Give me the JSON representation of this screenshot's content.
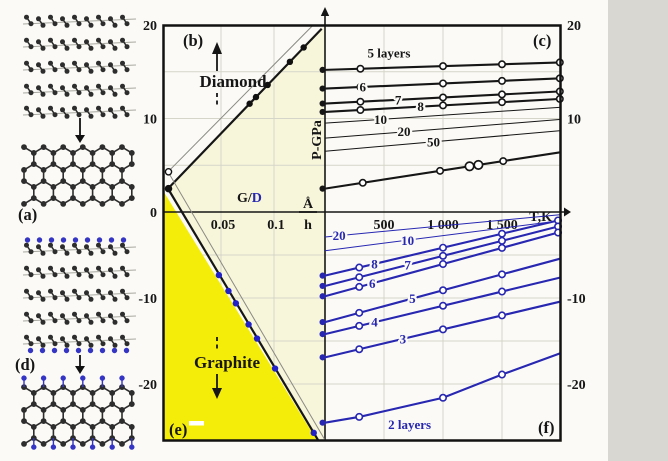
{
  "page": {
    "paper": "#fbfaf6",
    "strip": "#d9d7d2"
  },
  "colors": {
    "black": "#161616",
    "blue": "#2727b2",
    "marker_blue": "#2121c6",
    "yellow": "#f4ec09",
    "cream": "#f8f6da",
    "grid": "#d6d5c9",
    "thin_gray": "#8a8a84"
  },
  "panels": {
    "a": "(a)",
    "b": "(b)",
    "c": "(c)",
    "d": "(d)",
    "e": "(e)",
    "f": "(f)"
  },
  "annotations": {
    "diamond": "Diamond",
    "graphite": "Graphite"
  },
  "axis": {
    "p_label": "P-GPa",
    "t_label": "T,K",
    "fraction_top": "Å",
    "fraction_bottom": "h",
    "ratio_black": "G/",
    "ratio_blue": "D",
    "left_ticks": [
      {
        "p": 20,
        "t": "20"
      },
      {
        "p": 10,
        "t": "10"
      },
      {
        "p": 0,
        "t": "0"
      },
      {
        "p": -10,
        "t": "-10"
      },
      {
        "p": -20,
        "t": "-20"
      }
    ],
    "right_ticks": [
      {
        "p": 20,
        "t": "20"
      },
      {
        "p": 10,
        "t": "10"
      },
      {
        "p": -10,
        "t": "-10"
      },
      {
        "p": -20,
        "t": "-20"
      }
    ],
    "t_ticks": [
      {
        "v": 500,
        "t": "500"
      },
      {
        "v": 1000,
        "t": "1 000"
      },
      {
        "v": 1500,
        "t": "1 500"
      }
    ],
    "gd_ticks": [
      {
        "v": 0.05,
        "t": "0.05"
      },
      {
        "v": 0.1,
        "t": "0.1"
      }
    ]
  },
  "chart_data": [
    {
      "type": "line",
      "panel": "b-e",
      "xlabel": "G/D (Å/h)",
      "ylabel": "P-GPa",
      "xlim": [
        0,
        0.152
      ],
      "ylim": [
        -26.5,
        20
      ],
      "regions": [
        {
          "name": "diamond-region",
          "fill": "paper"
        },
        {
          "name": "intermediate-region",
          "fill": "cream"
        },
        {
          "name": "graphite-region",
          "fill": "yellow"
        }
      ],
      "series": [
        {
          "name": "diamond-boundary",
          "style": "thick",
          "color": "black",
          "points": [
            [
              0,
              2.5
            ],
            [
              0.145,
              19.6
            ]
          ],
          "marker": "filled_black",
          "marker_x": [
            0.077,
            0.083,
            0.094,
            0.115,
            0.128
          ]
        },
        {
          "name": "diamond-boundary-ref",
          "style": "thin",
          "color": "gray",
          "points": [
            [
              0,
              4.3
            ],
            [
              0.137,
              20.0
            ]
          ]
        },
        {
          "name": "graphite-boundary",
          "style": "thick",
          "color": "black",
          "points": [
            [
              0,
              2.5
            ],
            [
              0.1415,
              -26.5
            ]
          ],
          "marker": "filled_blue",
          "marker_x": [
            0.048,
            0.057,
            0.064,
            0.076,
            0.084,
            0.101,
            0.1375
          ]
        },
        {
          "name": "graphite-boundary-ref",
          "style": "thin",
          "color": "gray",
          "points": [
            [
              0,
              4.3
            ],
            [
              0.148,
              -26.5
            ]
          ]
        }
      ],
      "axis_markers": [
        {
          "p": 4.3,
          "type": "open"
        },
        {
          "p": 2.5,
          "type": "filled"
        }
      ]
    },
    {
      "type": "line",
      "panel": "c-f",
      "xlabel": "T,K",
      "ylabel": "P-GPa",
      "xlim": [
        0,
        2000
      ],
      "ylim": [
        -26.5,
        20
      ],
      "series": [
        {
          "label": "5 layers",
          "label_at": [
            360,
            17.0
          ],
          "label_anchor": "start",
          "label_off": true,
          "style": "thick",
          "color": "black",
          "points": [
            [
              0,
              15.2
            ],
            [
              2000,
              16.0
            ]
          ],
          "circles_t": [
            300,
            1000,
            1500,
            1990
          ],
          "axis_dot": true
        },
        {
          "label": "6",
          "label_at": [
            320,
            13.35
          ],
          "style": "thick",
          "color": "black",
          "points": [
            [
              0,
              13.2
            ],
            [
              2000,
              14.3
            ]
          ],
          "circles_t": [
            300,
            1000,
            1500,
            1990
          ],
          "axis_dot": true
        },
        {
          "label": "7",
          "label_at": [
            620,
            12.0
          ],
          "style": "thick",
          "color": "black",
          "points": [
            [
              0,
              11.6
            ],
            [
              2000,
              12.9
            ]
          ],
          "circles_t": [
            300,
            1000,
            1500,
            1990
          ],
          "axis_dot": true
        },
        {
          "label": "8",
          "label_at": [
            810,
            11.3
          ],
          "style": "thick",
          "color": "black",
          "points": [
            [
              0,
              10.7
            ],
            [
              2000,
              12.1
            ]
          ],
          "circles_t": [
            300,
            1000,
            1500,
            1990
          ],
          "axis_dot": true
        },
        {
          "label": "10",
          "label_at": [
            470,
            9.9
          ],
          "style": "thin",
          "color": "black",
          "points": [
            [
              0,
              9.5
            ],
            [
              2000,
              11.2
            ]
          ]
        },
        {
          "label": "20",
          "label_at": [
            670,
            8.6
          ],
          "style": "thin",
          "color": "black",
          "points": [
            [
              0,
              7.9
            ],
            [
              2000,
              9.9
            ]
          ]
        },
        {
          "label": "50",
          "label_at": [
            920,
            7.5
          ],
          "style": "thin",
          "color": "black",
          "points": [
            [
              0,
              6.5
            ],
            [
              2000,
              8.7
            ]
          ]
        },
        {
          "label": "∞",
          "style": "thick",
          "color": "black",
          "points": [
            [
              0,
              2.5
            ],
            [
              2000,
              6.4
            ]
          ],
          "circles_t": [
            320,
            975,
            1510
          ],
          "infinity_t": 1225,
          "axis_dot": true
        },
        {
          "label": "20",
          "label_at": [
            120,
            -2.75
          ],
          "style": "thin",
          "color": "blue",
          "points": [
            [
              0,
              -2.9
            ],
            [
              2000,
              -0.3
            ]
          ]
        },
        {
          "label": "10",
          "label_at": [
            700,
            -3.3
          ],
          "style": "thin",
          "color": "blue",
          "points": [
            [
              0,
              -4.5
            ],
            [
              2000,
              -1.0
            ]
          ]
        },
        {
          "label": "8",
          "label_at": [
            420,
            -6.05
          ],
          "style": "thick",
          "color": "blue",
          "points": [
            [
              0,
              -7.4
            ],
            [
              2000,
              -0.9
            ]
          ],
          "circles_t": [
            290,
            1000,
            1500,
            1975
          ],
          "axis_dot": true
        },
        {
          "label": "7",
          "label_at": [
            700,
            -6.15
          ],
          "style": "thick",
          "color": "blue",
          "points": [
            [
              0,
              -8.6
            ],
            [
              2000,
              -1.6
            ]
          ],
          "circles_t": [
            290,
            1000,
            1500,
            1975
          ],
          "axis_dot": true
        },
        {
          "label": "6",
          "label_at": [
            400,
            -8.3
          ],
          "style": "thick",
          "color": "blue",
          "points": [
            [
              0,
              -9.8
            ],
            [
              2000,
              -2.3
            ]
          ],
          "circles_t": [
            290,
            1000,
            1500,
            1975
          ],
          "axis_dot": true
        },
        {
          "label": "5",
          "label_at": [
            740,
            -10.05
          ],
          "style": "thick",
          "color": "blue",
          "points": [
            [
              0,
              -12.8
            ],
            [
              2000,
              -5.4
            ]
          ],
          "circles_t": [
            290,
            1000,
            1500
          ],
          "axis_dot": true
        },
        {
          "label": "4",
          "label_at": [
            420,
            -12.8
          ],
          "style": "thick",
          "color": "blue",
          "points": [
            [
              0,
              -14.2
            ],
            [
              2000,
              -7.6
            ]
          ],
          "circles_t": [
            290,
            1000,
            1500
          ],
          "axis_dot": true
        },
        {
          "label": "3",
          "label_at": [
            660,
            -14.75
          ],
          "style": "thick",
          "color": "blue",
          "points": [
            [
              0,
              -16.9
            ],
            [
              2000,
              -10.4
            ]
          ],
          "circles_t": [
            290,
            1000,
            1500
          ],
          "axis_dot": true
        },
        {
          "label": "2 layers",
          "label_at": [
            535,
            -24.7
          ],
          "label_anchor": "start",
          "label_off": true,
          "style": "thick",
          "color": "blue",
          "points": [
            [
              0,
              -24.5
            ],
            [
              300,
              -23.8
            ],
            [
              1000,
              -21.6
            ],
            [
              1500,
              -18.9
            ],
            [
              2000,
              -16.4
            ]
          ],
          "circles_t": [
            290,
            1000,
            1500
          ],
          "axis_dot": true
        }
      ]
    }
  ],
  "illustrations": {
    "stack_layers": 5,
    "atom_color": "#2d2d2d",
    "cap_color": "#3535c5"
  }
}
